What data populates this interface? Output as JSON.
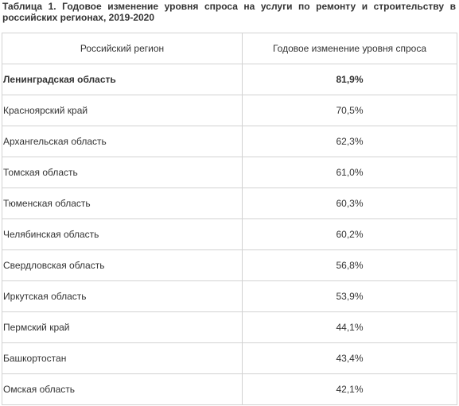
{
  "caption": "Таблица 1. Годовое изменение уровня спроса на услуги по ремонту и строительству в российских регионах, 2019-2020",
  "table": {
    "headers": [
      "Российский регион",
      "Годовое изменение уровня спроса"
    ],
    "rows": [
      {
        "region": "Ленинградская область",
        "value": "81,9%",
        "bold": true
      },
      {
        "region": "Красноярский край",
        "value": "70,5%",
        "bold": false
      },
      {
        "region": "Архангельская область",
        "value": "62,3%",
        "bold": false
      },
      {
        "region": "Томская область",
        "value": "61,0%",
        "bold": false
      },
      {
        "region": "Тюменская область",
        "value": "60,3%",
        "bold": false
      },
      {
        "region": "Челябинская область",
        "value": "60,2%",
        "bold": false
      },
      {
        "region": "Свердловская область",
        "value": "56,8%",
        "bold": false
      },
      {
        "region": "Иркутская область",
        "value": "53,9%",
        "bold": false
      },
      {
        "region": "Пермский край",
        "value": "44,1%",
        "bold": false
      },
      {
        "region": "Башкортостан",
        "value": "43,4%",
        "bold": false
      },
      {
        "region": "Омская область",
        "value": "42,1%",
        "bold": false
      }
    ]
  }
}
